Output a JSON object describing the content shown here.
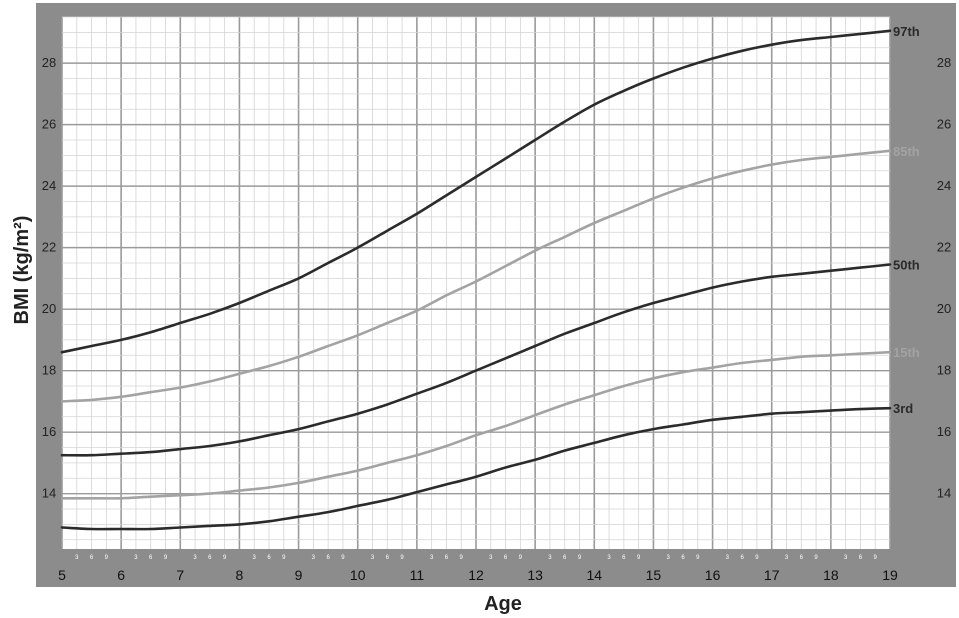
{
  "chart_data": {
    "type": "line",
    "title": "",
    "xlabel": "Age",
    "ylabel": "BMI (kg/m²)",
    "xlim": [
      5,
      19
    ],
    "ylim": [
      12.2,
      29.5
    ],
    "x_ticks": [
      "5",
      "6",
      "7",
      "8",
      "9",
      "10",
      "11",
      "12",
      "13",
      "14",
      "15",
      "16",
      "17",
      "18",
      "19"
    ],
    "y_ticks": [
      "14",
      "16",
      "18",
      "20",
      "22",
      "24",
      "26",
      "28"
    ],
    "month_ticks": [
      "3",
      "6",
      "9"
    ],
    "grid": true,
    "colors": {
      "dark": "#2b2b2b",
      "light": "#a3a3a3",
      "frame": "#8c8c8c",
      "grid_major": "#9a9a9a",
      "grid_minor": "#d4d4d4"
    },
    "x": [
      5,
      5.5,
      6,
      6.5,
      7,
      7.5,
      8,
      8.5,
      9,
      9.5,
      10,
      10.5,
      11,
      11.5,
      12,
      12.5,
      13,
      13.5,
      14,
      14.5,
      15,
      15.5,
      16,
      16.5,
      17,
      17.5,
      18,
      18.5,
      19
    ],
    "series": [
      {
        "name": "97th",
        "shade": "dark",
        "values": [
          18.6,
          18.8,
          19.0,
          19.25,
          19.55,
          19.85,
          20.2,
          20.6,
          21.0,
          21.5,
          22.0,
          22.55,
          23.1,
          23.7,
          24.3,
          24.9,
          25.5,
          26.1,
          26.65,
          27.1,
          27.5,
          27.85,
          28.15,
          28.4,
          28.6,
          28.75,
          28.85,
          28.95,
          29.05
        ]
      },
      {
        "name": "85th",
        "shade": "light",
        "values": [
          17.0,
          17.05,
          17.15,
          17.3,
          17.45,
          17.65,
          17.9,
          18.15,
          18.45,
          18.8,
          19.15,
          19.55,
          19.95,
          20.45,
          20.9,
          21.4,
          21.9,
          22.35,
          22.8,
          23.2,
          23.6,
          23.95,
          24.25,
          24.5,
          24.7,
          24.85,
          24.95,
          25.05,
          25.15
        ]
      },
      {
        "name": "50th",
        "shade": "dark",
        "values": [
          15.25,
          15.25,
          15.3,
          15.35,
          15.45,
          15.55,
          15.7,
          15.9,
          16.1,
          16.35,
          16.6,
          16.9,
          17.25,
          17.6,
          18.0,
          18.4,
          18.8,
          19.2,
          19.55,
          19.9,
          20.2,
          20.45,
          20.7,
          20.9,
          21.05,
          21.15,
          21.25,
          21.35,
          21.45
        ]
      },
      {
        "name": "15th",
        "shade": "light",
        "values": [
          13.85,
          13.85,
          13.85,
          13.9,
          13.95,
          14.0,
          14.1,
          14.2,
          14.35,
          14.55,
          14.75,
          15.0,
          15.25,
          15.55,
          15.9,
          16.2,
          16.55,
          16.9,
          17.2,
          17.5,
          17.75,
          17.95,
          18.1,
          18.25,
          18.35,
          18.45,
          18.5,
          18.55,
          18.6
        ]
      },
      {
        "name": "3rd",
        "shade": "dark",
        "values": [
          12.9,
          12.85,
          12.85,
          12.85,
          12.9,
          12.95,
          13.0,
          13.1,
          13.25,
          13.4,
          13.6,
          13.8,
          14.05,
          14.3,
          14.55,
          14.85,
          15.1,
          15.4,
          15.65,
          15.9,
          16.1,
          16.25,
          16.4,
          16.5,
          16.6,
          16.65,
          16.7,
          16.75,
          16.78
        ]
      }
    ]
  }
}
